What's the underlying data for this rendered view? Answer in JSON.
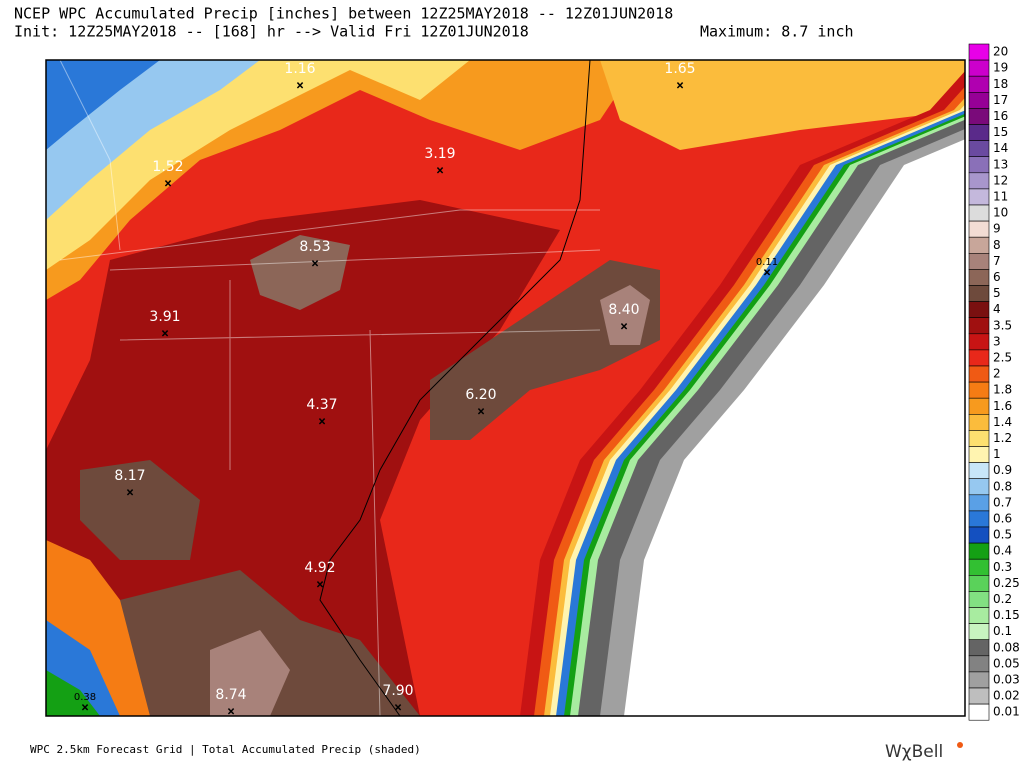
{
  "header": {
    "line1": "NCEP WPC Accumulated Precip [inches] between 12Z25MAY2018 -- 12Z01JUN2018",
    "line2": "Init: 12Z25MAY2018 -- [168] hr --> Valid Fri 12Z01JUN2018",
    "maximum": "Maximum: 8.7 inch"
  },
  "points": [
    "1.16",
    "1.65",
    "1.52",
    "3.19",
    "8.53",
    "0.11",
    "8.40",
    "3.91",
    "6.20",
    "4.37",
    "8.17",
    "4.92",
    "7.90",
    "8.74",
    "0.38"
  ],
  "legend": [
    {
      "label": "20",
      "color": "#e800e8"
    },
    {
      "label": "19",
      "color": "#cc00cc"
    },
    {
      "label": "18",
      "color": "#b000b0"
    },
    {
      "label": "17",
      "color": "#960096"
    },
    {
      "label": "16",
      "color": "#7a0a7a"
    },
    {
      "label": "15",
      "color": "#5a2a8a"
    },
    {
      "label": "14",
      "color": "#6a4aa0"
    },
    {
      "label": "13",
      "color": "#8a70b8"
    },
    {
      "label": "12",
      "color": "#a896cc"
    },
    {
      "label": "11",
      "color": "#c4b8dc"
    },
    {
      "label": "10",
      "color": "#dcdcdc"
    },
    {
      "label": "9",
      "color": "#f2dcd4"
    },
    {
      "label": "8",
      "color": "#c8a69a"
    },
    {
      "label": "7",
      "color": "#a8827a"
    },
    {
      "label": "6",
      "color": "#8c6658"
    },
    {
      "label": "5",
      "color": "#6e4a3c"
    },
    {
      "label": "4",
      "color": "#7a1010"
    },
    {
      "label": "3.5",
      "color": "#a01010"
    },
    {
      "label": "3",
      "color": "#c81414"
    },
    {
      "label": "2.5",
      "color": "#e8281a"
    },
    {
      "label": "2",
      "color": "#f05a14"
    },
    {
      "label": "1.8",
      "color": "#f57c14"
    },
    {
      "label": "1.6",
      "color": "#f79a1e"
    },
    {
      "label": "1.4",
      "color": "#fbbc3c"
    },
    {
      "label": "1.2",
      "color": "#fde070"
    },
    {
      "label": "1",
      "color": "#fff4b0"
    },
    {
      "label": "0.9",
      "color": "#c8e6f8"
    },
    {
      "label": "0.8",
      "color": "#96c8f0"
    },
    {
      "label": "0.7",
      "color": "#5aa0e6"
    },
    {
      "label": "0.6",
      "color": "#2a78d8"
    },
    {
      "label": "0.5",
      "color": "#1450c0"
    },
    {
      "label": "0.4",
      "color": "#14a014"
    },
    {
      "label": "0.3",
      "color": "#32c032"
    },
    {
      "label": "0.25",
      "color": "#5ad25a"
    },
    {
      "label": "0.2",
      "color": "#82e082"
    },
    {
      "label": "0.15",
      "color": "#a8eca0"
    },
    {
      "label": "0.1",
      "color": "#c8f4c0"
    },
    {
      "label": "0.08",
      "color": "#646464"
    },
    {
      "label": "0.05",
      "color": "#828282"
    },
    {
      "label": "0.03",
      "color": "#a0a0a0"
    },
    {
      "label": "0.02",
      "color": "#bebebe"
    },
    {
      "label": "0.01",
      "color": "#ffffff"
    }
  ],
  "footer": "WPC 2.5km Forecast Grid | Total Accumulated Precip (shaded)",
  "logo": "WχBell"
}
